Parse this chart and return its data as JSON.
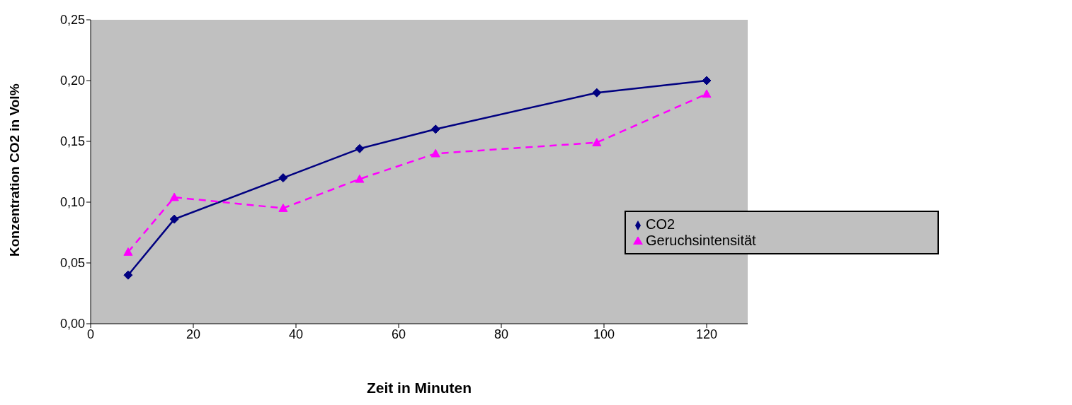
{
  "chart_data": {
    "type": "line",
    "xlabel": "Zeit in Minuten",
    "ylabel": "Konzentration CO2 in Vol%",
    "x": [
      7.3,
      16.3,
      37.5,
      52.4,
      67.2,
      98.6,
      120
    ],
    "series": [
      {
        "name": "CO2",
        "color": "#000080",
        "values": [
          0.04,
          0.086,
          0.12,
          0.144,
          0.16,
          0.19,
          0.2
        ],
        "marker": "diamond",
        "line_style": "solid"
      },
      {
        "name": "Geruchsintensität",
        "color": "#ff00ff",
        "values": [
          0.059,
          0.104,
          0.095,
          0.119,
          0.14,
          0.149,
          0.189
        ],
        "marker": "triangle",
        "line_style": "dashed"
      }
    ],
    "xlim": [
      0,
      128
    ],
    "xticks": [
      0,
      20,
      40,
      60,
      80,
      100,
      120
    ],
    "ylim": [
      0,
      0.25
    ],
    "yticks": [
      {
        "value": 0,
        "label": "0,00"
      },
      {
        "value": 0.05,
        "label": "0,05"
      },
      {
        "value": 0.1,
        "label": "0,10"
      },
      {
        "value": 0.15,
        "label": "0,15"
      },
      {
        "value": 0.2,
        "label": "0,20"
      },
      {
        "value": 0.25,
        "label": "0,25"
      }
    ],
    "grid": false,
    "legend": "right"
  }
}
